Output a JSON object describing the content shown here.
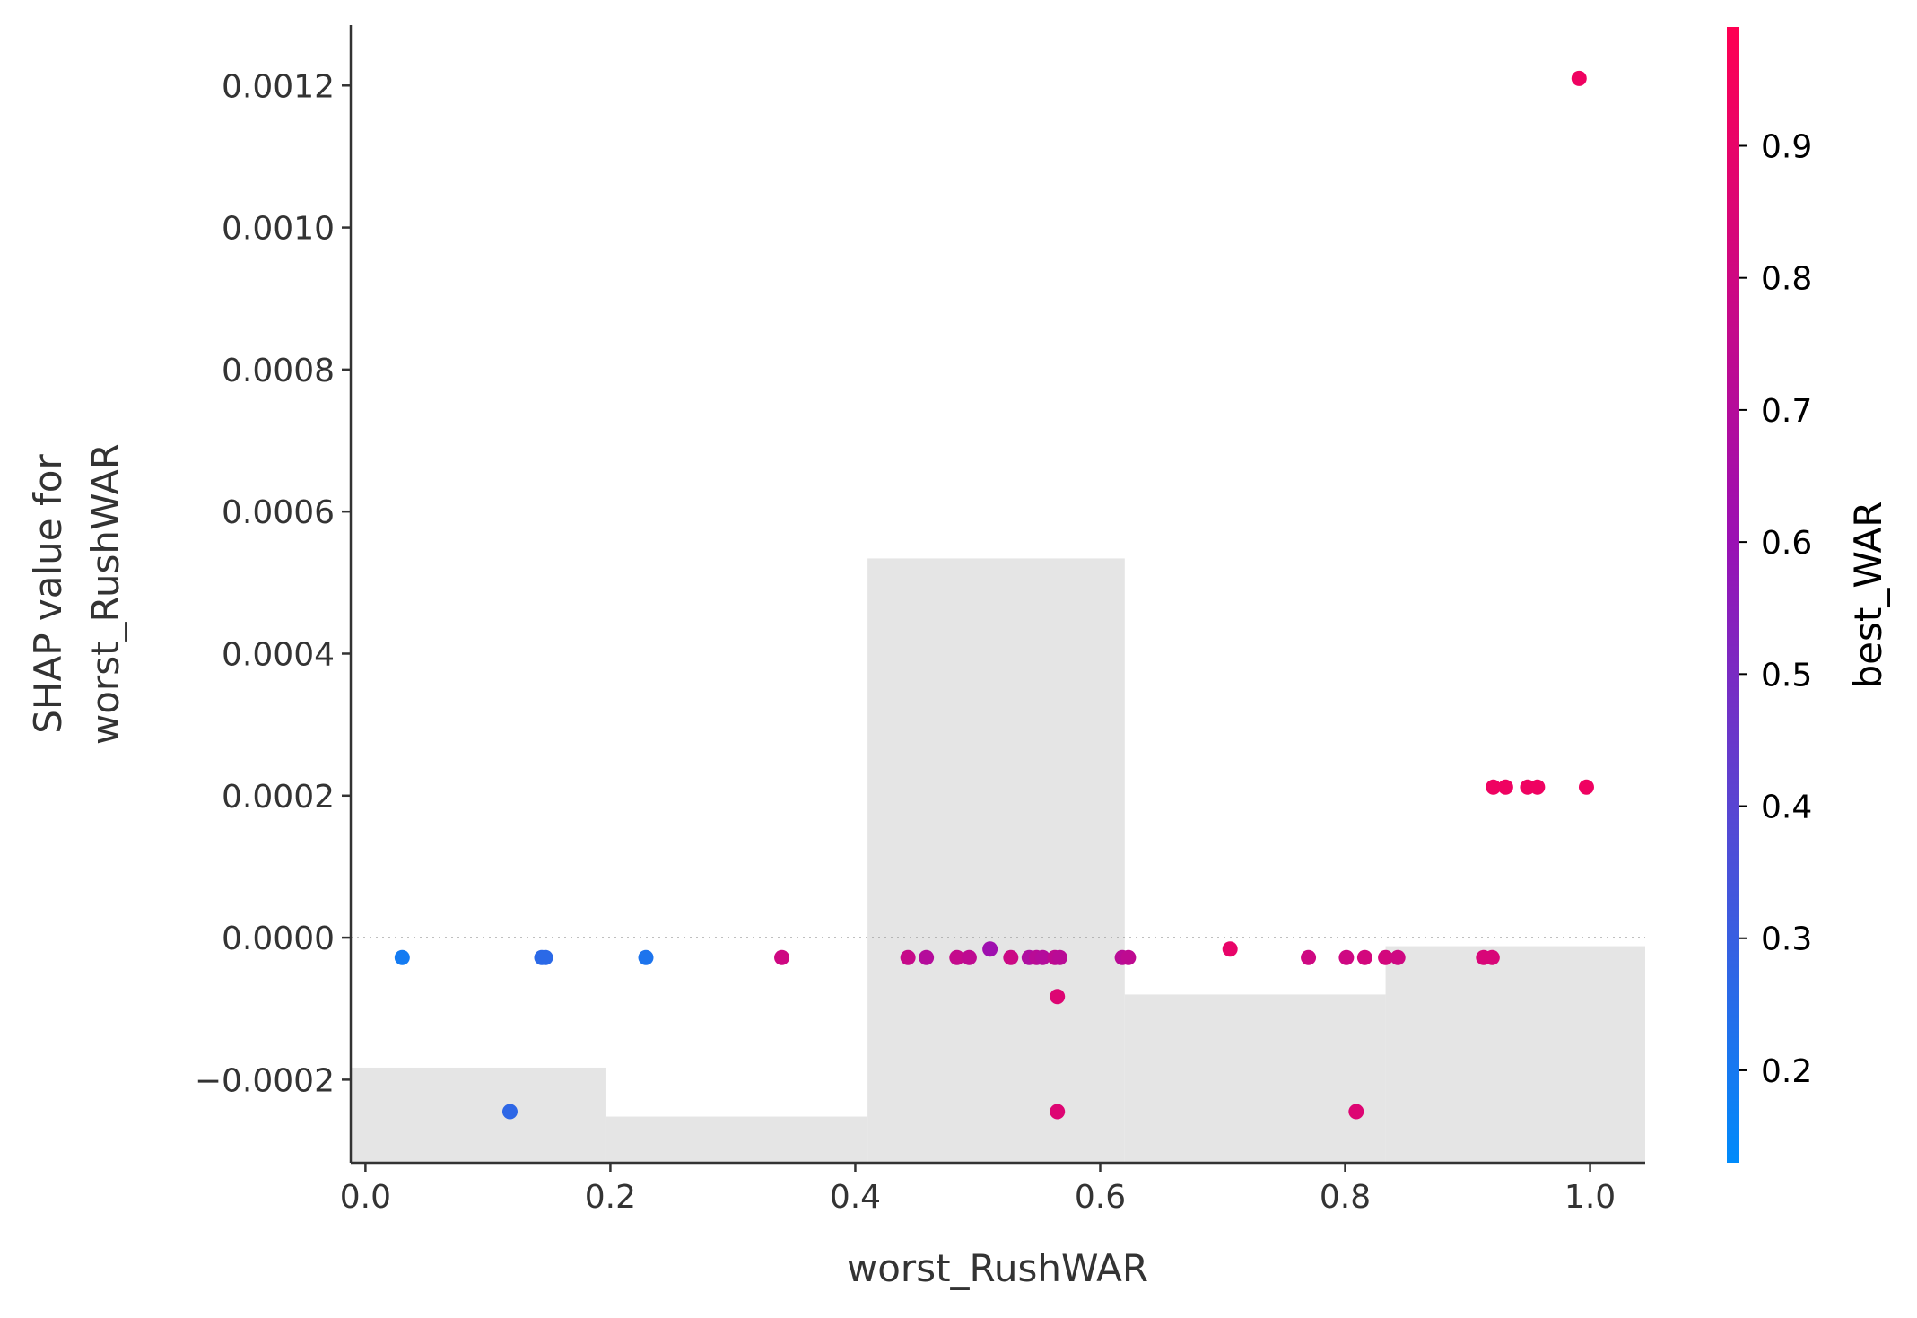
{
  "chart_data": {
    "type": "scatter",
    "title": "",
    "xlabel": "worst_RushWAR",
    "ylabel_lines": [
      "SHAP value for",
      "worst_RushWAR"
    ],
    "xlim": [
      -0.012,
      1.045
    ],
    "ylim": [
      -0.000317,
      0.001285
    ],
    "xticks": [
      {
        "value": 0.0,
        "label": "0.0"
      },
      {
        "value": 0.2,
        "label": "0.2"
      },
      {
        "value": 0.4,
        "label": "0.4"
      },
      {
        "value": 0.6,
        "label": "0.6"
      },
      {
        "value": 0.8,
        "label": "0.8"
      },
      {
        "value": 1.0,
        "label": "1.0"
      }
    ],
    "yticks": [
      {
        "value": -0.0002,
        "label": "−0.0002"
      },
      {
        "value": 0.0,
        "label": "0.0000"
      },
      {
        "value": 0.0002,
        "label": "0.0002"
      },
      {
        "value": 0.0004,
        "label": "0.0004"
      },
      {
        "value": 0.0006,
        "label": "0.0006"
      },
      {
        "value": 0.0008,
        "label": "0.0008"
      },
      {
        "value": 0.001,
        "label": "0.0010"
      },
      {
        "value": 0.0012,
        "label": "0.0012"
      }
    ],
    "zero_line": true,
    "histogram": {
      "color": "#e5e5e5",
      "bins": [
        {
          "x0": -0.012,
          "x1": 0.196,
          "top": -0.000183
        },
        {
          "x0": 0.196,
          "x1": 0.41,
          "top": -0.000252
        },
        {
          "x0": 0.41,
          "x1": 0.62,
          "top": 0.000534
        },
        {
          "x0": 0.62,
          "x1": 0.833,
          "top": -8e-05
        },
        {
          "x0": 0.833,
          "x1": 1.045,
          "top": -1.2e-05
        }
      ]
    },
    "points": [
      {
        "x": 0.03,
        "y": -2.8e-05,
        "c": 0.19
      },
      {
        "x": 0.118,
        "y": -0.000245,
        "c": 0.27
      },
      {
        "x": 0.144,
        "y": -2.8e-05,
        "c": 0.26
      },
      {
        "x": 0.147,
        "y": -2.8e-05,
        "c": 0.26
      },
      {
        "x": 0.229,
        "y": -2.8e-05,
        "c": 0.22
      },
      {
        "x": 0.34,
        "y": -2.8e-05,
        "c": 0.8
      },
      {
        "x": 0.443,
        "y": -2.8e-05,
        "c": 0.77
      },
      {
        "x": 0.458,
        "y": -2.8e-05,
        "c": 0.7
      },
      {
        "x": 0.483,
        "y": -2.8e-05,
        "c": 0.76
      },
      {
        "x": 0.493,
        "y": -2.8e-05,
        "c": 0.74
      },
      {
        "x": 0.51,
        "y": -1.6e-05,
        "c": 0.62
      },
      {
        "x": 0.527,
        "y": -2.8e-05,
        "c": 0.79
      },
      {
        "x": 0.542,
        "y": -2.8e-05,
        "c": 0.68
      },
      {
        "x": 0.548,
        "y": -2.8e-05,
        "c": 0.72
      },
      {
        "x": 0.553,
        "y": -2.8e-05,
        "c": 0.7
      },
      {
        "x": 0.563,
        "y": -2.8e-05,
        "c": 0.74
      },
      {
        "x": 0.567,
        "y": -2.8e-05,
        "c": 0.72
      },
      {
        "x": 0.565,
        "y": -8.3e-05,
        "c": 0.86
      },
      {
        "x": 0.565,
        "y": -0.000245,
        "c": 0.86
      },
      {
        "x": 0.618,
        "y": -2.8e-05,
        "c": 0.72
      },
      {
        "x": 0.623,
        "y": -2.8e-05,
        "c": 0.74
      },
      {
        "x": 0.706,
        "y": -1.6e-05,
        "c": 0.9
      },
      {
        "x": 0.77,
        "y": -2.8e-05,
        "c": 0.8
      },
      {
        "x": 0.801,
        "y": -2.8e-05,
        "c": 0.8
      },
      {
        "x": 0.809,
        "y": -0.000245,
        "c": 0.86
      },
      {
        "x": 0.816,
        "y": -2.8e-05,
        "c": 0.82
      },
      {
        "x": 0.833,
        "y": -2.8e-05,
        "c": 0.82
      },
      {
        "x": 0.843,
        "y": -2.8e-05,
        "c": 0.8
      },
      {
        "x": 0.913,
        "y": -2.8e-05,
        "c": 0.84
      },
      {
        "x": 0.92,
        "y": -2.8e-05,
        "c": 0.84
      },
      {
        "x": 0.921,
        "y": 0.000212,
        "c": 0.93
      },
      {
        "x": 0.931,
        "y": 0.000212,
        "c": 0.93
      },
      {
        "x": 0.949,
        "y": 0.000212,
        "c": 0.93
      },
      {
        "x": 0.957,
        "y": 0.000212,
        "c": 0.93
      },
      {
        "x": 0.991,
        "y": 0.00121,
        "c": 0.93
      },
      {
        "x": 0.997,
        "y": 0.000212,
        "c": 0.93
      }
    ],
    "colorbar": {
      "label": "best_WAR",
      "range": [
        0.13,
        0.99
      ],
      "low_color": "#008bfb",
      "mid_color": "#9b10b3",
      "high_color": "#ff0052",
      "ticks": [
        {
          "value": 0.2,
          "label": "0.2"
        },
        {
          "value": 0.3,
          "label": "0.3"
        },
        {
          "value": 0.4,
          "label": "0.4"
        },
        {
          "value": 0.5,
          "label": "0.5"
        },
        {
          "value": 0.6,
          "label": "0.6"
        },
        {
          "value": 0.7,
          "label": "0.7"
        },
        {
          "value": 0.8,
          "label": "0.8"
        },
        {
          "value": 0.9,
          "label": "0.9"
        }
      ]
    }
  }
}
